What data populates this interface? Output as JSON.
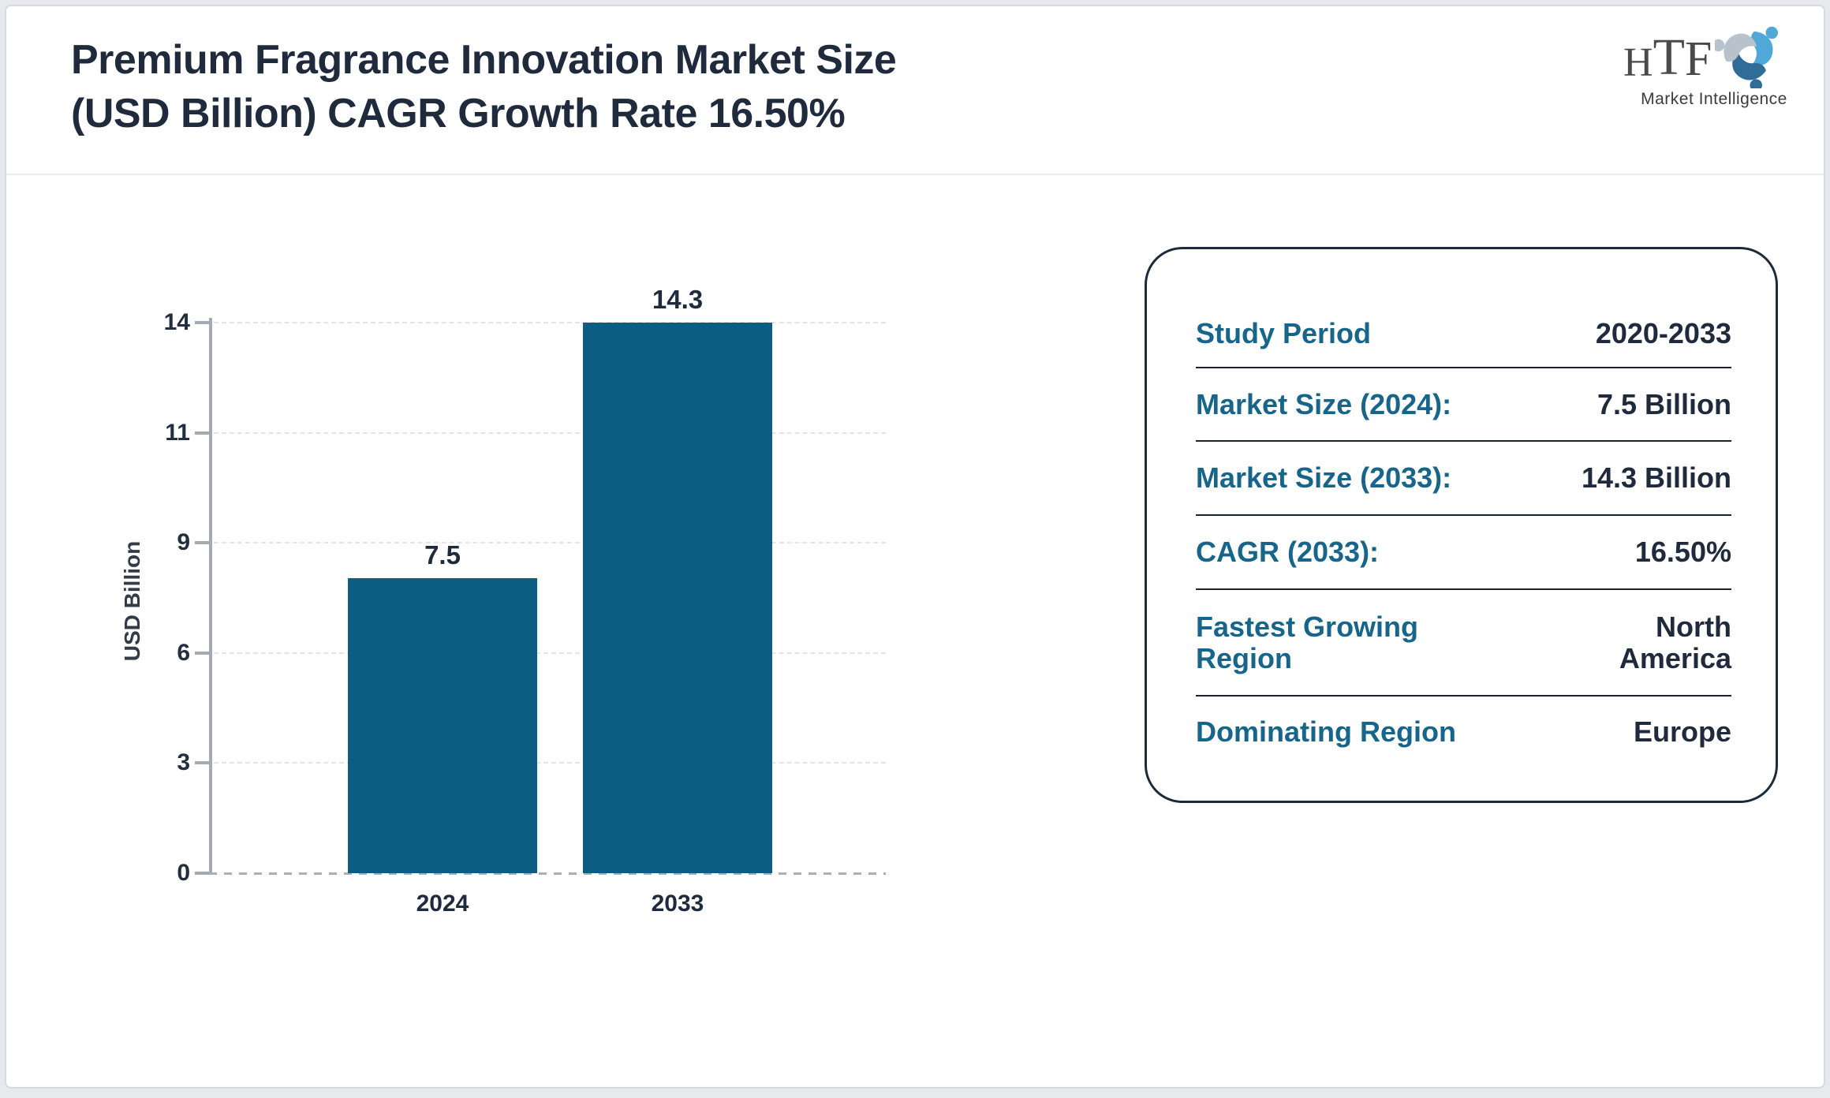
{
  "header": {
    "title_line1": "Premium Fragrance Innovation Market Size",
    "title_line2": "(USD Billion) CAGR Growth Rate 16.50%",
    "logo": {
      "text_h": "H",
      "text_t": "T",
      "text_f": "F",
      "subtext": "Market Intelligence",
      "icon": "people-swirl-icon",
      "icon_colors": [
        "#4fa8d8",
        "#2f6d98",
        "#b7c2cc"
      ]
    }
  },
  "chart_data": {
    "type": "bar",
    "title": "Premium Fragrance Innovation Market Size (USD Billion) CAGR Growth Rate 16.50%",
    "categories": [
      "2024",
      "2033"
    ],
    "values": [
      7.5,
      14.3
    ],
    "value_labels": [
      "7.5",
      "14.3"
    ],
    "xlabel": "",
    "ylabel": "USD Billion",
    "yticks": [
      0,
      3,
      6,
      9,
      11,
      14
    ],
    "ylim": [
      0,
      14
    ],
    "grid": true,
    "legend": false,
    "bar_color": "#0d5c82"
  },
  "panel": {
    "rows": [
      {
        "label": "Study Period",
        "value": "2020-2033"
      },
      {
        "label": "Market Size (2024):",
        "value": "7.5 Billion"
      },
      {
        "label": "Market Size (2033):",
        "value": "14.3 Billion"
      },
      {
        "label": "CAGR (2033):",
        "value": "16.50%"
      },
      {
        "label": "Fastest Growing Region",
        "value": "North America"
      },
      {
        "label": "Dominating Region",
        "value": "Europe"
      }
    ]
  },
  "colors": {
    "accent_teal": "#17658a",
    "navy_text": "#1f2b3c",
    "bar_fill": "#0d5c82",
    "page_background": "#e8e9ed",
    "panel_border": "#1c2a3a"
  }
}
